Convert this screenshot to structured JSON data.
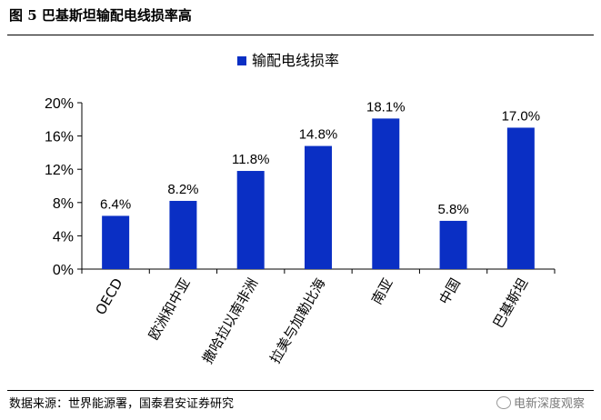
{
  "figure": {
    "title": "图 5  巴基斯坦输配电线损率高",
    "source": "数据来源：世界能源署，国泰君安证券研究",
    "watermark": "电新深度观察"
  },
  "chart_data": {
    "type": "bar",
    "categories": [
      "OECD",
      "欧洲和中亚",
      "撒哈拉以南非洲",
      "拉美与加勒比海",
      "南亚",
      "中国",
      "巴基斯坦"
    ],
    "series": [
      {
        "name": "输配电线损率",
        "values": [
          6.4,
          8.2,
          11.8,
          14.8,
          18.1,
          5.8,
          17.0
        ]
      }
    ],
    "data_labels": [
      "6.4%",
      "8.2%",
      "11.8%",
      "14.8%",
      "18.1%",
      "5.8%",
      "17.0%"
    ],
    "yticks": [
      0,
      4,
      8,
      12,
      16,
      20
    ],
    "ytick_labels": [
      "0%",
      "4%",
      "8%",
      "12%",
      "16%",
      "20%"
    ],
    "ylim": [
      0,
      20
    ],
    "legend_position": "top",
    "grid": false,
    "bar_color": "#0a2fc4"
  }
}
